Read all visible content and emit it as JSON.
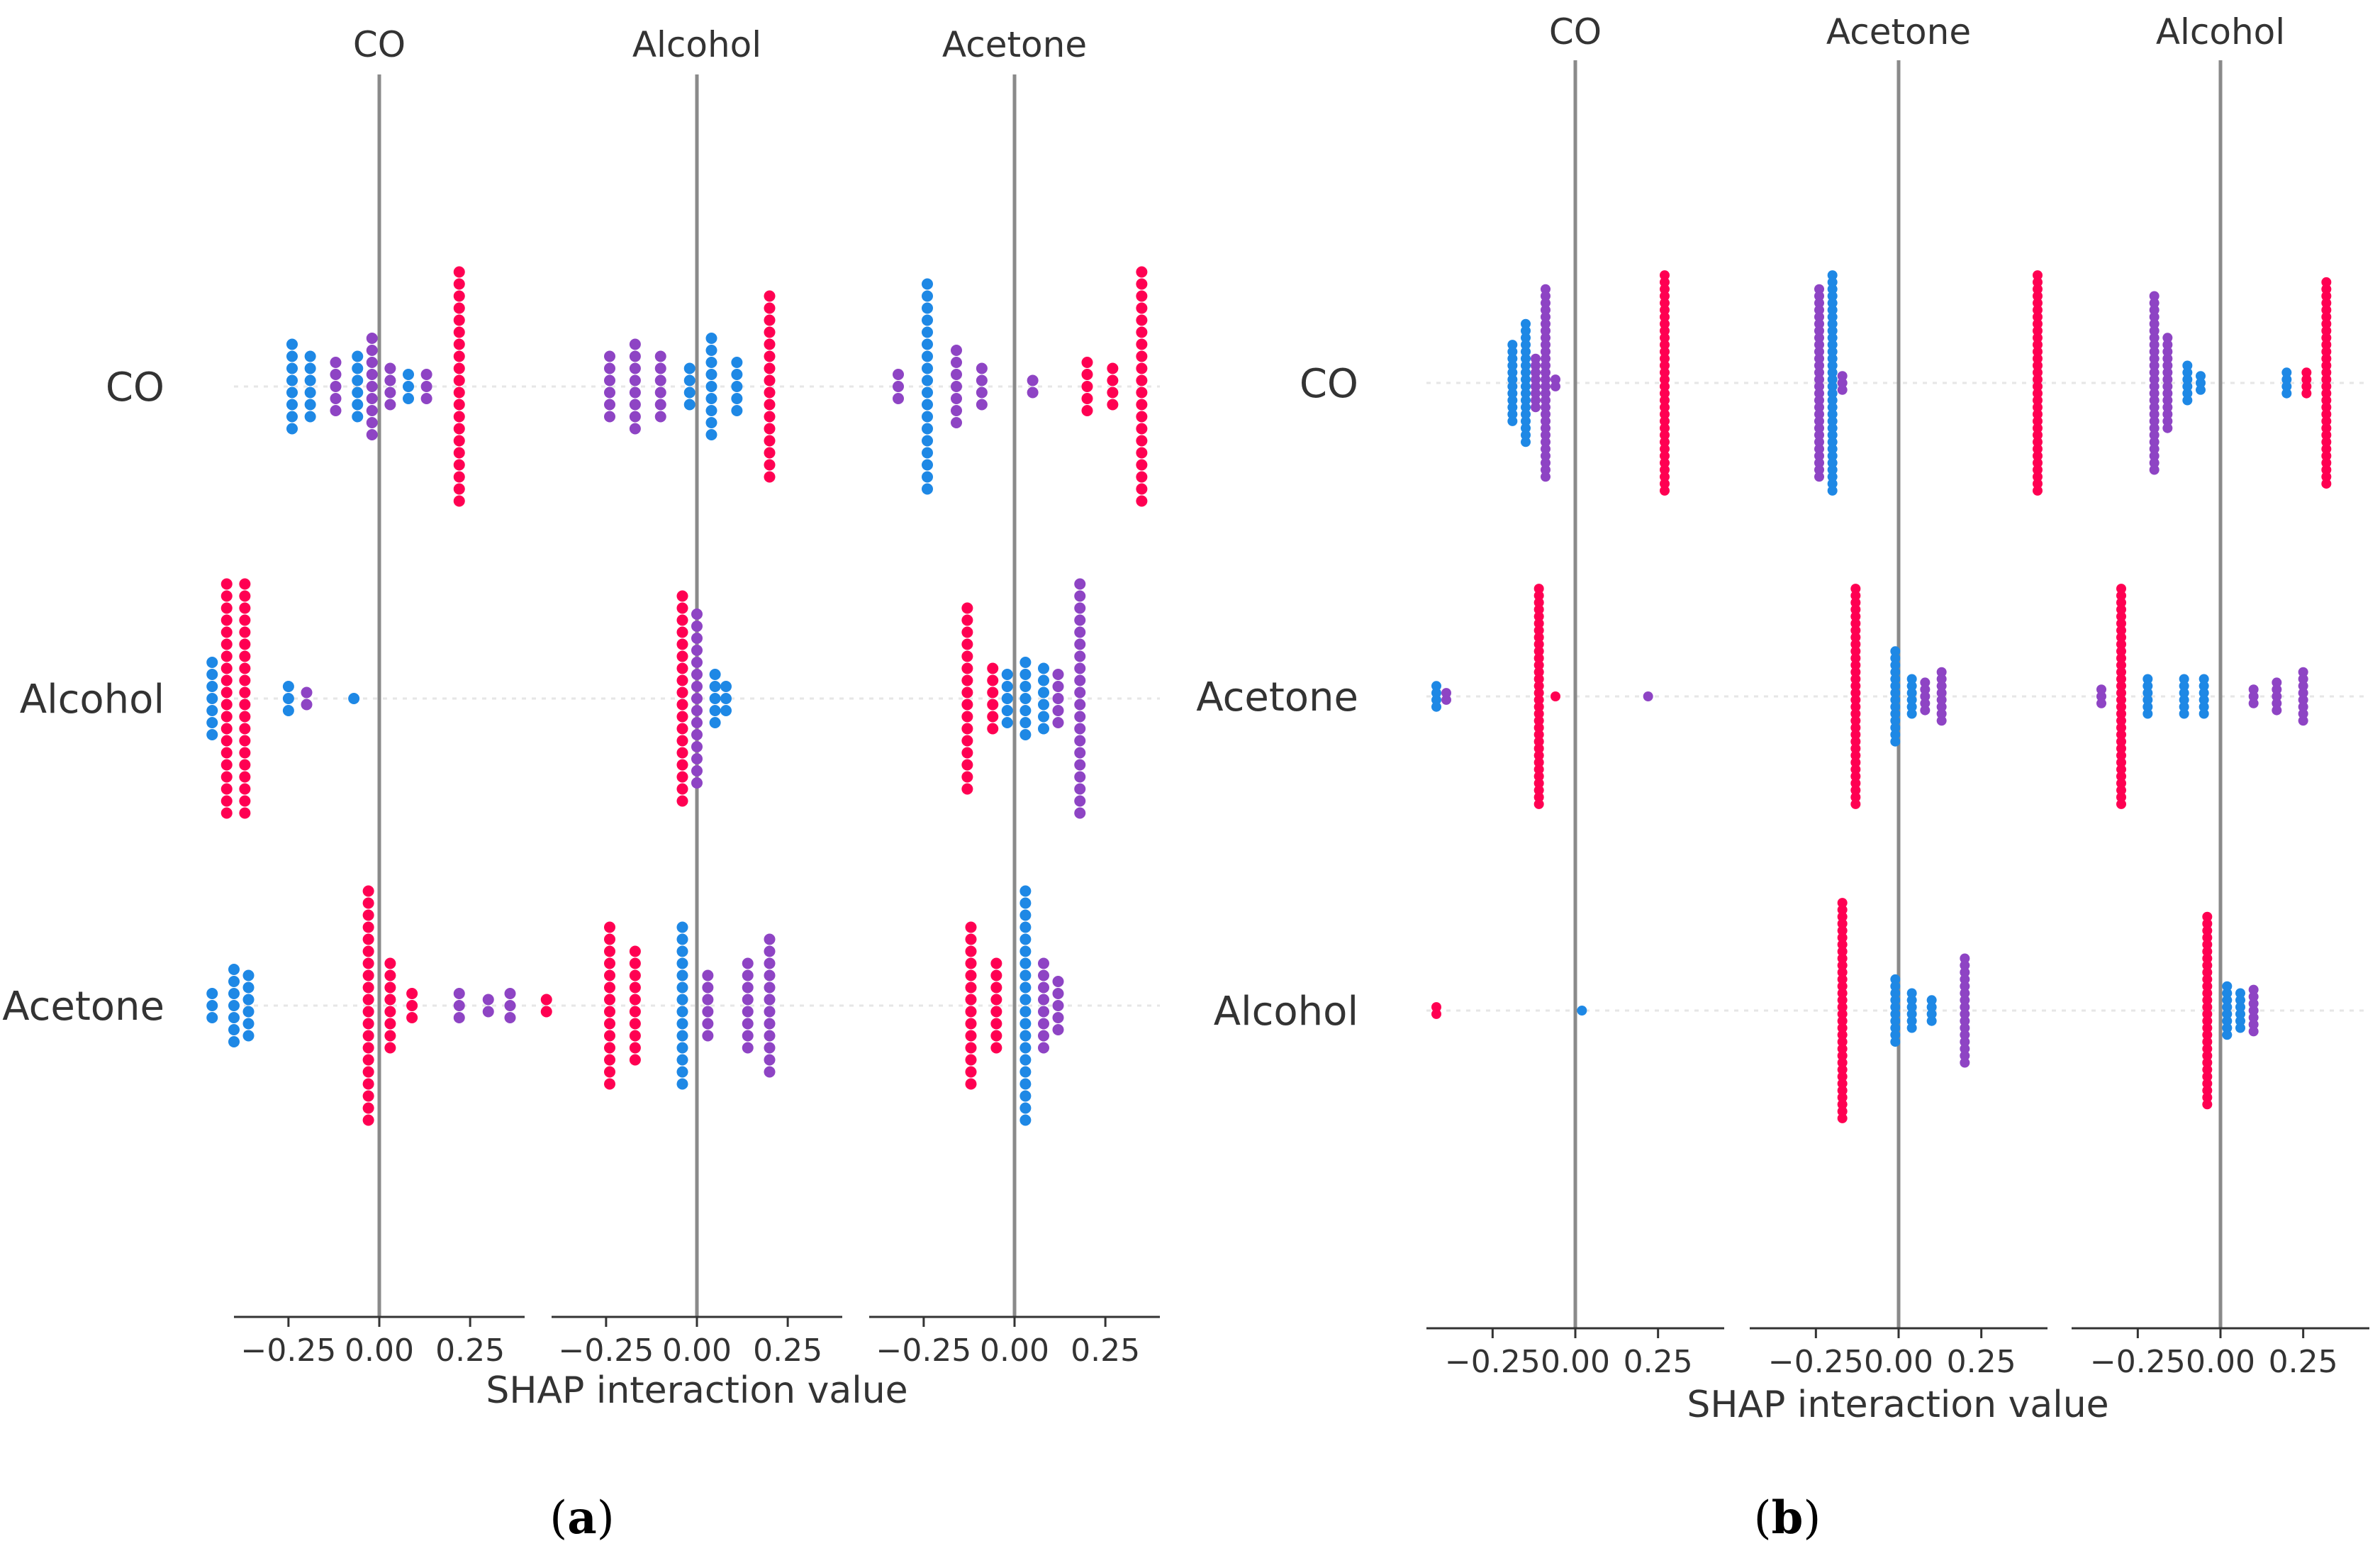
{
  "figure": {
    "panel_captions": [
      "a",
      "b"
    ],
    "colors": {
      "low": "#1E88E5",
      "mid": "#8E44C4",
      "high": "#FF0052",
      "zero_line": "#8A8A8A"
    }
  },
  "chart_data": [
    {
      "type": "scatter",
      "subtype": "shap_interaction_beeswarm",
      "panel": "a",
      "caption": "a",
      "columns": [
        "CO",
        "Alcohol",
        "Acetone"
      ],
      "rows": [
        "CO",
        "Alcohol",
        "Acetone"
      ],
      "xlabel": "SHAP interaction value",
      "xlim": [
        -0.4,
        0.4
      ],
      "xticks": [
        -0.25,
        0.0,
        0.25
      ],
      "xtick_labels": [
        "−0.25",
        "0.00",
        "0.25"
      ],
      "color_legend": [
        "low",
        "mid",
        "high"
      ],
      "cells": [
        {
          "row": "CO",
          "col": "CO",
          "groups": [
            {
              "x": -0.24,
              "count": 8,
              "color": "low"
            },
            {
              "x": -0.19,
              "count": 6,
              "color": "low"
            },
            {
              "x": -0.12,
              "count": 5,
              "color": "mid"
            },
            {
              "x": -0.06,
              "count": 6,
              "color": "low"
            },
            {
              "x": -0.02,
              "count": 9,
              "color": "mid"
            },
            {
              "x": 0.03,
              "count": 4,
              "color": "mid"
            },
            {
              "x": 0.08,
              "count": 3,
              "color": "low"
            },
            {
              "x": 0.13,
              "count": 3,
              "color": "mid"
            },
            {
              "x": 0.22,
              "count": 20,
              "color": "high"
            }
          ]
        },
        {
          "row": "CO",
          "col": "Alcohol",
          "groups": [
            {
              "x": -0.24,
              "count": 6,
              "color": "mid"
            },
            {
              "x": -0.17,
              "count": 8,
              "color": "mid"
            },
            {
              "x": -0.1,
              "count": 6,
              "color": "mid"
            },
            {
              "x": -0.02,
              "count": 4,
              "color": "low"
            },
            {
              "x": 0.04,
              "count": 9,
              "color": "low"
            },
            {
              "x": 0.11,
              "count": 5,
              "color": "low"
            },
            {
              "x": 0.2,
              "count": 16,
              "color": "high"
            }
          ]
        },
        {
          "row": "CO",
          "col": "Acetone",
          "groups": [
            {
              "x": -0.32,
              "count": 3,
              "color": "mid"
            },
            {
              "x": -0.24,
              "count": 18,
              "color": "low"
            },
            {
              "x": -0.16,
              "count": 7,
              "color": "mid"
            },
            {
              "x": -0.09,
              "count": 4,
              "color": "mid"
            },
            {
              "x": 0.05,
              "count": 2,
              "color": "mid"
            },
            {
              "x": 0.2,
              "count": 5,
              "color": "high"
            },
            {
              "x": 0.27,
              "count": 4,
              "color": "high"
            },
            {
              "x": 0.35,
              "count": 20,
              "color": "high"
            }
          ]
        },
        {
          "row": "Alcohol",
          "col": "CO",
          "groups": [
            {
              "x": -0.46,
              "count": 7,
              "color": "low"
            },
            {
              "x": -0.42,
              "count": 20,
              "color": "high"
            },
            {
              "x": -0.37,
              "count": 20,
              "color": "high"
            },
            {
              "x": -0.25,
              "count": 3,
              "color": "low"
            },
            {
              "x": -0.2,
              "count": 2,
              "color": "mid"
            },
            {
              "x": -0.07,
              "count": 1,
              "color": "low"
            }
          ]
        },
        {
          "row": "Alcohol",
          "col": "Alcohol",
          "groups": [
            {
              "x": -0.04,
              "count": 18,
              "color": "high"
            },
            {
              "x": 0.0,
              "count": 15,
              "color": "mid"
            },
            {
              "x": 0.05,
              "count": 5,
              "color": "low"
            },
            {
              "x": 0.08,
              "count": 3,
              "color": "low"
            }
          ]
        },
        {
          "row": "Alcohol",
          "col": "Acetone",
          "groups": [
            {
              "x": -0.13,
              "count": 16,
              "color": "high"
            },
            {
              "x": -0.06,
              "count": 6,
              "color": "high"
            },
            {
              "x": -0.02,
              "count": 5,
              "color": "low"
            },
            {
              "x": 0.03,
              "count": 7,
              "color": "low"
            },
            {
              "x": 0.08,
              "count": 6,
              "color": "low"
            },
            {
              "x": 0.12,
              "count": 5,
              "color": "mid"
            },
            {
              "x": 0.18,
              "count": 20,
              "color": "mid"
            }
          ]
        },
        {
          "row": "Acetone",
          "col": "CO",
          "groups": [
            {
              "x": -0.46,
              "count": 3,
              "color": "low"
            },
            {
              "x": -0.4,
              "count": 7,
              "color": "low"
            },
            {
              "x": -0.36,
              "count": 6,
              "color": "low"
            },
            {
              "x": -0.03,
              "count": 20,
              "color": "high"
            },
            {
              "x": 0.03,
              "count": 8,
              "color": "high"
            },
            {
              "x": 0.09,
              "count": 3,
              "color": "high"
            },
            {
              "x": 0.22,
              "count": 3,
              "color": "mid"
            },
            {
              "x": 0.3,
              "count": 2,
              "color": "mid"
            },
            {
              "x": 0.36,
              "count": 3,
              "color": "mid"
            },
            {
              "x": 0.46,
              "count": 2,
              "color": "high"
            }
          ]
        },
        {
          "row": "Acetone",
          "col": "Alcohol",
          "groups": [
            {
              "x": -0.24,
              "count": 14,
              "color": "high"
            },
            {
              "x": -0.17,
              "count": 10,
              "color": "high"
            },
            {
              "x": -0.04,
              "count": 14,
              "color": "low"
            },
            {
              "x": 0.03,
              "count": 6,
              "color": "mid"
            },
            {
              "x": 0.14,
              "count": 8,
              "color": "mid"
            },
            {
              "x": 0.2,
              "count": 12,
              "color": "mid"
            }
          ]
        },
        {
          "row": "Acetone",
          "col": "Acetone",
          "groups": [
            {
              "x": -0.12,
              "count": 14,
              "color": "high"
            },
            {
              "x": -0.05,
              "count": 8,
              "color": "high"
            },
            {
              "x": 0.03,
              "count": 20,
              "color": "low"
            },
            {
              "x": 0.08,
              "count": 8,
              "color": "mid"
            },
            {
              "x": 0.12,
              "count": 5,
              "color": "mid"
            }
          ]
        }
      ]
    },
    {
      "type": "scatter",
      "subtype": "shap_interaction_beeswarm",
      "panel": "b",
      "caption": "b",
      "columns": [
        "CO",
        "Acetone",
        "Alcohol"
      ],
      "rows": [
        "CO",
        "Acetone",
        "Alcohol"
      ],
      "xlabel": "SHAP interaction value",
      "xlim": [
        -0.45,
        0.45
      ],
      "xticks": [
        -0.25,
        0.0,
        0.25
      ],
      "xtick_labels": [
        "−0.25",
        "0.00",
        "0.25"
      ],
      "color_legend": [
        "low",
        "mid",
        "high"
      ],
      "cells": [
        {
          "row": "CO",
          "col": "CO",
          "groups": [
            {
              "x": -0.19,
              "count": 12,
              "color": "low"
            },
            {
              "x": -0.15,
              "count": 18,
              "color": "low"
            },
            {
              "x": -0.12,
              "count": 8,
              "color": "mid"
            },
            {
              "x": -0.09,
              "count": 28,
              "color": "mid"
            },
            {
              "x": -0.06,
              "count": 2,
              "color": "mid"
            },
            {
              "x": 0.27,
              "count": 32,
              "color": "high"
            }
          ]
        },
        {
          "row": "CO",
          "col": "Acetone",
          "groups": [
            {
              "x": -0.24,
              "count": 28,
              "color": "mid"
            },
            {
              "x": -0.2,
              "count": 32,
              "color": "low"
            },
            {
              "x": -0.17,
              "count": 3,
              "color": "mid"
            },
            {
              "x": 0.42,
              "count": 32,
              "color": "high"
            }
          ]
        },
        {
          "row": "CO",
          "col": "Alcohol",
          "groups": [
            {
              "x": -0.2,
              "count": 26,
              "color": "mid"
            },
            {
              "x": -0.16,
              "count": 14,
              "color": "mid"
            },
            {
              "x": -0.1,
              "count": 6,
              "color": "low"
            },
            {
              "x": -0.06,
              "count": 3,
              "color": "low"
            },
            {
              "x": 0.2,
              "count": 4,
              "color": "low"
            },
            {
              "x": 0.26,
              "count": 4,
              "color": "high"
            },
            {
              "x": 0.32,
              "count": 30,
              "color": "high"
            }
          ]
        },
        {
          "row": "Acetone",
          "col": "CO",
          "groups": [
            {
              "x": -0.42,
              "count": 4,
              "color": "low"
            },
            {
              "x": -0.39,
              "count": 2,
              "color": "mid"
            },
            {
              "x": -0.11,
              "count": 32,
              "color": "high"
            },
            {
              "x": -0.06,
              "count": 1,
              "color": "high"
            },
            {
              "x": 0.22,
              "count": 1,
              "color": "mid"
            }
          ]
        },
        {
          "row": "Acetone",
          "col": "Acetone",
          "groups": [
            {
              "x": -0.13,
              "count": 32,
              "color": "high"
            },
            {
              "x": -0.01,
              "count": 14,
              "color": "low"
            },
            {
              "x": 0.04,
              "count": 6,
              "color": "low"
            },
            {
              "x": 0.08,
              "count": 5,
              "color": "mid"
            },
            {
              "x": 0.13,
              "count": 8,
              "color": "mid"
            }
          ]
        },
        {
          "row": "Acetone",
          "col": "Alcohol",
          "groups": [
            {
              "x": -0.36,
              "count": 3,
              "color": "mid"
            },
            {
              "x": -0.3,
              "count": 32,
              "color": "high"
            },
            {
              "x": -0.22,
              "count": 6,
              "color": "low"
            },
            {
              "x": -0.11,
              "count": 6,
              "color": "low"
            },
            {
              "x": -0.05,
              "count": 6,
              "color": "low"
            },
            {
              "x": 0.1,
              "count": 3,
              "color": "mid"
            },
            {
              "x": 0.17,
              "count": 5,
              "color": "mid"
            },
            {
              "x": 0.25,
              "count": 8,
              "color": "mid"
            }
          ]
        },
        {
          "row": "Alcohol",
          "col": "CO",
          "groups": [
            {
              "x": -0.42,
              "count": 2,
              "color": "high"
            },
            {
              "x": 0.02,
              "count": 1,
              "color": "low"
            }
          ]
        },
        {
          "row": "Alcohol",
          "col": "Acetone",
          "groups": [
            {
              "x": -0.17,
              "count": 32,
              "color": "high"
            },
            {
              "x": -0.01,
              "count": 10,
              "color": "low"
            },
            {
              "x": 0.04,
              "count": 6,
              "color": "low"
            },
            {
              "x": 0.1,
              "count": 4,
              "color": "low"
            },
            {
              "x": 0.2,
              "count": 16,
              "color": "mid"
            }
          ]
        },
        {
          "row": "Alcohol",
          "col": "Alcohol",
          "groups": [
            {
              "x": -0.04,
              "count": 28,
              "color": "high"
            },
            {
              "x": 0.02,
              "count": 8,
              "color": "low"
            },
            {
              "x": 0.06,
              "count": 6,
              "color": "low"
            },
            {
              "x": 0.1,
              "count": 7,
              "color": "mid"
            }
          ]
        }
      ]
    }
  ]
}
